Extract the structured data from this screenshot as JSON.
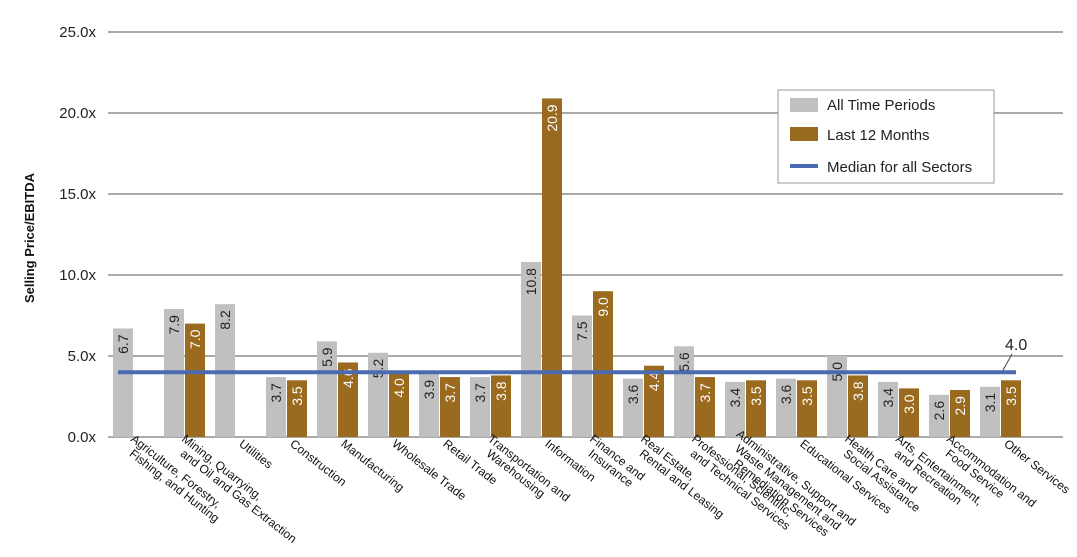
{
  "chart_data": {
    "type": "bar",
    "ylabel": "Selling Price/EBITDA",
    "ylim": [
      0,
      25
    ],
    "yticks": [
      "0.0x",
      "5.0x",
      "10.0x",
      "15.0x",
      "20.0x",
      "25.0x"
    ],
    "ytick_values": [
      0,
      5,
      10,
      15,
      20,
      25
    ],
    "grid": true,
    "legend_position": "top-right",
    "categories": [
      "Agriculture, Forestry,\nFishing, and Hunting",
      "Mining, Quarrying,\nand Oil and Gas Extraction",
      "Utilities",
      "Construction",
      "Manufacturing",
      "Wholesale Trade",
      "Retail Trade",
      "Transportation and\nWarehousing",
      "Information",
      "Finance and\nInsurance",
      "Real Estate,\nRental and Leasing",
      "Professional, Scientific,\nand Technical Services",
      "Administrative, Support and\nWaste Management and\nRemediation Services",
      "Educational Services",
      "Health Care and\nSocial Assistance",
      "Arts, Entertainment,\nand Recreation",
      "Accommodation and\nFood Service",
      "Other Services"
    ],
    "series": [
      {
        "name": "All Time Periods",
        "color": "#c0c0c0",
        "label_color": "#222222",
        "values": [
          6.7,
          7.9,
          8.2,
          3.7,
          5.9,
          5.2,
          3.9,
          3.7,
          10.8,
          7.5,
          3.6,
          5.6,
          3.4,
          3.6,
          5.0,
          3.4,
          2.6,
          3.1
        ]
      },
      {
        "name": "Last 12 Months",
        "color": "#9a6a1e",
        "label_color": "#ffffff",
        "values": [
          null,
          7.0,
          null,
          3.5,
          4.6,
          4.0,
          3.7,
          3.8,
          20.9,
          9.0,
          4.4,
          3.7,
          3.5,
          3.5,
          3.8,
          3.0,
          2.9,
          3.5
        ]
      }
    ],
    "median": {
      "name": "Median for all Sectors",
      "value": 4.0,
      "label": "4.0",
      "color": "#4a6bb0"
    }
  }
}
